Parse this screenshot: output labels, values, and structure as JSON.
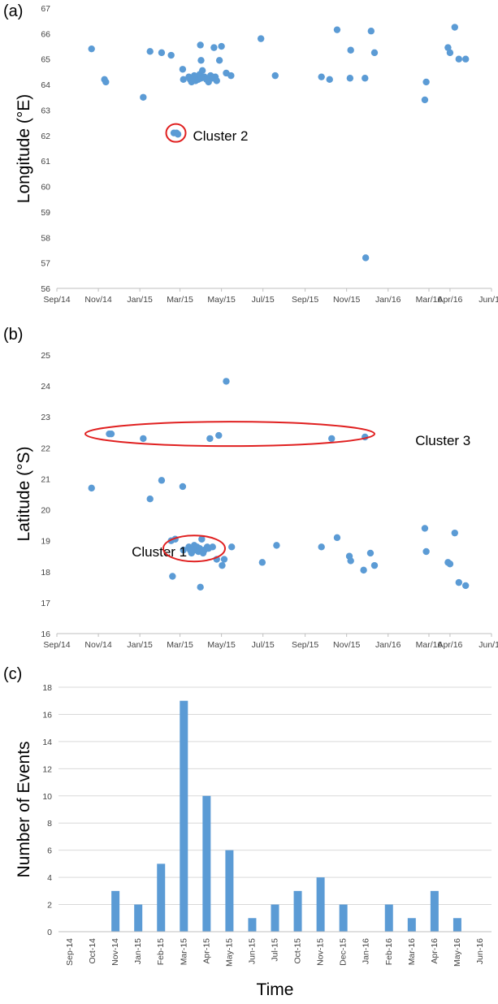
{
  "chart_data": [
    {
      "panel": "(a)",
      "type": "scatter",
      "ylabel": "Longitude (°E)",
      "xlabel": "",
      "xlim": [
        "2014-09-01",
        "2016-06-01"
      ],
      "ylim": [
        56,
        67
      ],
      "yticks": [
        56,
        57,
        58,
        59,
        60,
        61,
        62,
        63,
        64,
        65,
        66,
        67
      ],
      "xtick_labels": [
        "Sep/14",
        "Nov/14",
        "Jan/15",
        "Mar/15",
        "May/15",
        "Jul/15",
        "Sep/15",
        "Nov/15",
        "Jan/16",
        "Mar/16",
        "Apr/16",
        "Jun/16"
      ],
      "xtick_dates": [
        "2014-09-01",
        "2014-11-01",
        "2015-01-01",
        "2015-03-01",
        "2015-05-01",
        "2015-07-01",
        "2015-09-01",
        "2015-11-01",
        "2016-01-01",
        "2016-03-01",
        "2016-04-01",
        "2016-06-01"
      ],
      "grid": false,
      "marker_color": "#5b9bd5",
      "points": [
        [
          "2014-10-22",
          65.4
        ],
        [
          "2014-11-10",
          64.2
        ],
        [
          "2014-11-12",
          64.1
        ],
        [
          "2015-01-06",
          63.5
        ],
        [
          "2015-01-16",
          65.3
        ],
        [
          "2015-02-02",
          65.25
        ],
        [
          "2015-02-16",
          65.15
        ],
        [
          "2015-02-20",
          62.1
        ],
        [
          "2015-02-24",
          62.1
        ],
        [
          "2015-02-26",
          62.05
        ],
        [
          "2015-03-05",
          64.6
        ],
        [
          "2015-03-06",
          64.2
        ],
        [
          "2015-03-14",
          64.3
        ],
        [
          "2015-03-16",
          64.2
        ],
        [
          "2015-03-18",
          64.1
        ],
        [
          "2015-03-20",
          64.25
        ],
        [
          "2015-03-22",
          64.35
        ],
        [
          "2015-03-24",
          64.15
        ],
        [
          "2015-03-26",
          64.3
        ],
        [
          "2015-03-28",
          64.2
        ],
        [
          "2015-03-30",
          64.4
        ],
        [
          "2015-04-01",
          64.25
        ],
        [
          "2015-03-31",
          65.55
        ],
        [
          "2015-04-01",
          64.95
        ],
        [
          "2015-04-03",
          64.55
        ],
        [
          "2015-04-06",
          64.3
        ],
        [
          "2015-04-09",
          64.2
        ],
        [
          "2015-04-12",
          64.1
        ],
        [
          "2015-04-15",
          64.35
        ],
        [
          "2015-04-18",
          64.25
        ],
        [
          "2015-04-22",
          64.3
        ],
        [
          "2015-04-24",
          64.15
        ],
        [
          "2015-04-20",
          65.45
        ],
        [
          "2015-04-28",
          64.95
        ],
        [
          "2015-05-01",
          65.5
        ],
        [
          "2015-05-08",
          64.45
        ],
        [
          "2015-05-15",
          64.35
        ],
        [
          "2015-06-28",
          65.8
        ],
        [
          "2015-07-19",
          64.35
        ],
        [
          "2015-09-25",
          64.3
        ],
        [
          "2015-10-07",
          64.2
        ],
        [
          "2015-10-18",
          66.15
        ],
        [
          "2015-11-07",
          65.35
        ],
        [
          "2015-11-06",
          64.25
        ],
        [
          "2015-11-28",
          64.25
        ],
        [
          "2015-11-29",
          57.2
        ],
        [
          "2015-12-07",
          66.1
        ],
        [
          "2015-12-12",
          65.25
        ],
        [
          "2016-02-24",
          63.4
        ],
        [
          "2016-02-26",
          64.1
        ],
        [
          "2016-03-29",
          65.45
        ],
        [
          "2016-04-01",
          65.25
        ],
        [
          "2016-04-08",
          66.25
        ],
        [
          "2016-04-14",
          65.0
        ],
        [
          "2016-04-24",
          65.0
        ]
      ],
      "annotations": [
        {
          "text": "Cluster 2",
          "x": "2015-03-20",
          "y": 62.0
        }
      ]
    },
    {
      "panel": "(b)",
      "type": "scatter",
      "ylabel": "Latitude (°S)",
      "xlabel": "",
      "xlim": [
        "2014-09-01",
        "2016-06-01"
      ],
      "ylim": [
        16,
        25
      ],
      "yticks": [
        16,
        17,
        18,
        19,
        20,
        21,
        22,
        23,
        24,
        25
      ],
      "xtick_labels": [
        "Sep/14",
        "Nov/14",
        "Jan/15",
        "Mar/15",
        "May/15",
        "Jul/15",
        "Sep/15",
        "Nov/15",
        "Jan/16",
        "Mar/16",
        "Apr/16",
        "Jun/16"
      ],
      "xtick_dates": [
        "2014-09-01",
        "2014-11-01",
        "2015-01-01",
        "2015-03-01",
        "2015-05-01",
        "2015-07-01",
        "2015-09-01",
        "2015-11-01",
        "2016-01-01",
        "2016-03-01",
        "2016-04-01",
        "2016-06-01"
      ],
      "grid": false,
      "marker_color": "#5b9bd5",
      "points": [
        [
          "2014-10-22",
          20.7
        ],
        [
          "2014-11-17",
          22.45
        ],
        [
          "2014-11-20",
          22.45
        ],
        [
          "2015-01-06",
          22.3
        ],
        [
          "2015-01-16",
          20.35
        ],
        [
          "2015-02-02",
          20.95
        ],
        [
          "2015-02-16",
          19.0
        ],
        [
          "2015-02-18",
          17.85
        ],
        [
          "2015-02-22",
          19.05
        ],
        [
          "2015-03-05",
          20.75
        ],
        [
          "2015-03-06",
          18.7
        ],
        [
          "2015-03-14",
          18.8
        ],
        [
          "2015-03-16",
          18.7
        ],
        [
          "2015-03-18",
          18.6
        ],
        [
          "2015-03-20",
          18.75
        ],
        [
          "2015-03-22",
          18.85
        ],
        [
          "2015-03-24",
          18.7
        ],
        [
          "2015-03-26",
          18.8
        ],
        [
          "2015-03-28",
          18.65
        ],
        [
          "2015-03-30",
          18.75
        ],
        [
          "2015-03-31",
          17.5
        ],
        [
          "2015-04-02",
          19.05
        ],
        [
          "2015-04-04",
          18.6
        ],
        [
          "2015-04-06",
          18.7
        ],
        [
          "2015-04-10",
          18.8
        ],
        [
          "2015-04-12",
          18.75
        ],
        [
          "2015-04-14",
          22.3
        ],
        [
          "2015-04-18",
          18.8
        ],
        [
          "2015-04-24",
          18.4
        ],
        [
          "2015-04-27",
          22.4
        ],
        [
          "2015-05-02",
          18.2
        ],
        [
          "2015-05-05",
          18.4
        ],
        [
          "2015-05-08",
          24.15
        ],
        [
          "2015-05-16",
          18.8
        ],
        [
          "2015-06-30",
          18.3
        ],
        [
          "2015-07-21",
          18.85
        ],
        [
          "2015-09-25",
          18.8
        ],
        [
          "2015-10-10",
          22.3
        ],
        [
          "2015-10-18",
          19.1
        ],
        [
          "2015-11-05",
          18.5
        ],
        [
          "2015-11-07",
          18.35
        ],
        [
          "2015-11-26",
          18.05
        ],
        [
          "2015-11-28",
          22.35
        ],
        [
          "2015-12-06",
          18.6
        ],
        [
          "2015-12-12",
          18.2
        ],
        [
          "2016-02-24",
          19.4
        ],
        [
          "2016-02-26",
          18.65
        ],
        [
          "2016-03-29",
          18.3
        ],
        [
          "2016-04-01",
          18.25
        ],
        [
          "2016-04-08",
          19.25
        ],
        [
          "2016-04-14",
          17.65
        ],
        [
          "2016-04-24",
          17.55
        ]
      ],
      "annotations": [
        {
          "text": "Cluster 3",
          "x": "2016-02-10",
          "y": 22.25
        },
        {
          "text": "Cluster 1",
          "x": "2014-12-20",
          "y": 18.65
        }
      ]
    },
    {
      "panel": "(c)",
      "type": "bar",
      "xlabel": "Time",
      "ylabel": "Number of Events",
      "ylim": [
        0,
        18
      ],
      "yticks": [
        0,
        2,
        4,
        6,
        8,
        10,
        12,
        14,
        16,
        18
      ],
      "grid": true,
      "bar_color": "#5b9bd5",
      "categories": [
        "Sep-14",
        "Oct-14",
        "Nov-14",
        "Jan-15",
        "Feb-15",
        "Mar-15",
        "Apr-15",
        "May-15",
        "Jun-15",
        "Jul-15",
        "Oct-15",
        "Nov-15",
        "Dec-15",
        "Jan-16",
        "Feb-16",
        "Mar-16",
        "Apr-16",
        "May-16",
        "Jun-16"
      ],
      "values": [
        0,
        0,
        3,
        2,
        5,
        17,
        10,
        6,
        1,
        2,
        3,
        4,
        2,
        0,
        2,
        1,
        3,
        1,
        0
      ]
    }
  ]
}
